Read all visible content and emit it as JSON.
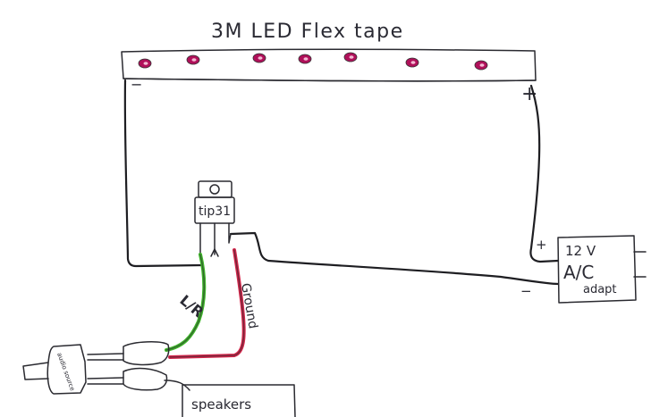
{
  "title": "3M LED Flex tape",
  "strip": {
    "led_color": "#b0105a",
    "led_count": 7,
    "negative_label": "−",
    "positive_label": "+"
  },
  "transistor": {
    "label": "tip31"
  },
  "wires": {
    "signal_label": "L/R",
    "signal_color": "#3fb52a",
    "ground_label": "Ground",
    "ground_color": "#d4254a"
  },
  "adapter": {
    "line1": "12 V",
    "line2": "A/C",
    "line3": "adapt",
    "plus_label": "+",
    "minus_label": "−"
  },
  "audio_source": {
    "label": "audio source"
  },
  "speakers": {
    "label": "speakers"
  }
}
